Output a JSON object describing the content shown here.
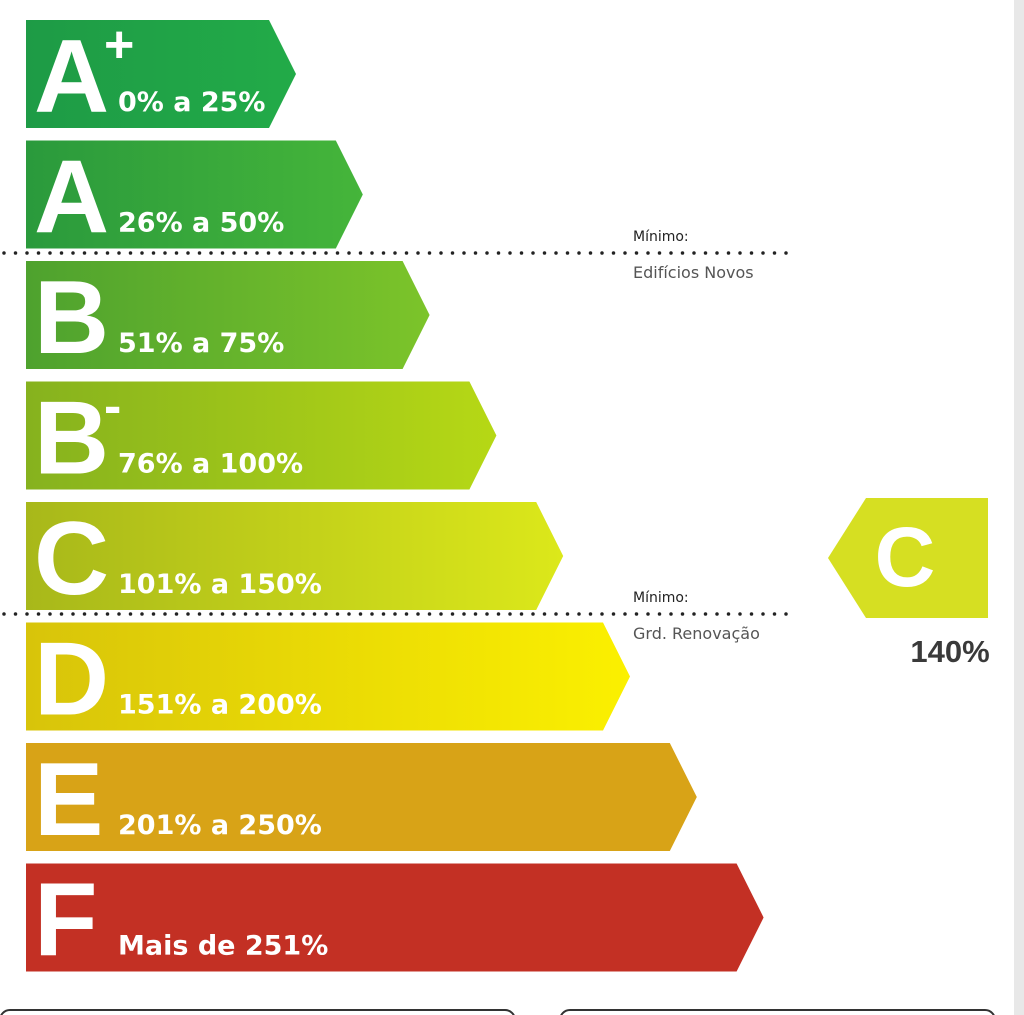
{
  "classes": [
    {
      "letter": "A",
      "suffix": "+",
      "range": "0% a 25%",
      "colors": [
        "#1e9b46",
        "#22ab48"
      ]
    },
    {
      "letter": "A",
      "range": "26% a 50%",
      "colors": [
        "#2a9a3c",
        "#45b53a"
      ]
    },
    {
      "letter": "B",
      "range": "51% a 75%",
      "colors": [
        "#4ea22e",
        "#7cc42a"
      ]
    },
    {
      "letter": "B",
      "suffix": "-",
      "range": "76% a 100%",
      "colors": [
        "#86b21e",
        "#b6d815"
      ]
    },
    {
      "letter": "C",
      "range": "101% a 150%",
      "colors": [
        "#a8b81a",
        "#dce81a"
      ]
    },
    {
      "letter": "D",
      "range": "151% a 200%",
      "colors": [
        "#d8c40a",
        "#fbf000"
      ]
    },
    {
      "letter": "E",
      "range": "201% a 250%",
      "colors": [
        "#d8a317",
        "#d8a317"
      ]
    },
    {
      "letter": "F",
      "range": "Mais de 251%",
      "colors": [
        "#c33024",
        "#c33024"
      ]
    }
  ],
  "thresholds": [
    {
      "title": "Mínimo:",
      "label": "Edifícios Novos"
    },
    {
      "title": "Mínimo:",
      "label": "Grd. Renovação"
    }
  ],
  "rating": {
    "letter": "C",
    "value": "140%",
    "color": "#d6df22"
  }
}
